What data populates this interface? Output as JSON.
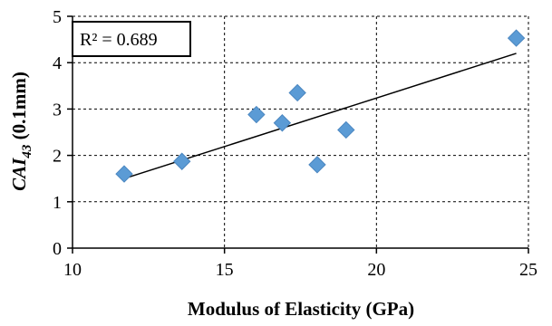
{
  "chart_data": {
    "type": "scatter",
    "xlabel": "Modulus of Elasticity (GPa)",
    "ylabel": {
      "base": "CAI",
      "sub": "43",
      "suffix": " (0.1mm)"
    },
    "xlim": [
      10,
      25
    ],
    "ylim": [
      0,
      5
    ],
    "xticks": [
      10,
      15,
      20,
      25
    ],
    "yticks": [
      0,
      1,
      2,
      3,
      4,
      5
    ],
    "grid": true,
    "legend": "none",
    "annotation": "R² = 0.689",
    "marker_color": "#5B9BD5",
    "marker_edge_color": "#4A86C0",
    "trendline": {
      "type": "linear",
      "x": [
        11.7,
        24.6
      ],
      "y": [
        1.5,
        4.2
      ]
    },
    "points": [
      {
        "x": 11.7,
        "y": 1.6
      },
      {
        "x": 13.6,
        "y": 1.87
      },
      {
        "x": 16.05,
        "y": 2.88
      },
      {
        "x": 16.9,
        "y": 2.7
      },
      {
        "x": 17.4,
        "y": 3.35
      },
      {
        "x": 18.05,
        "y": 1.8
      },
      {
        "x": 19.0,
        "y": 2.55
      },
      {
        "x": 24.6,
        "y": 4.53
      }
    ]
  }
}
